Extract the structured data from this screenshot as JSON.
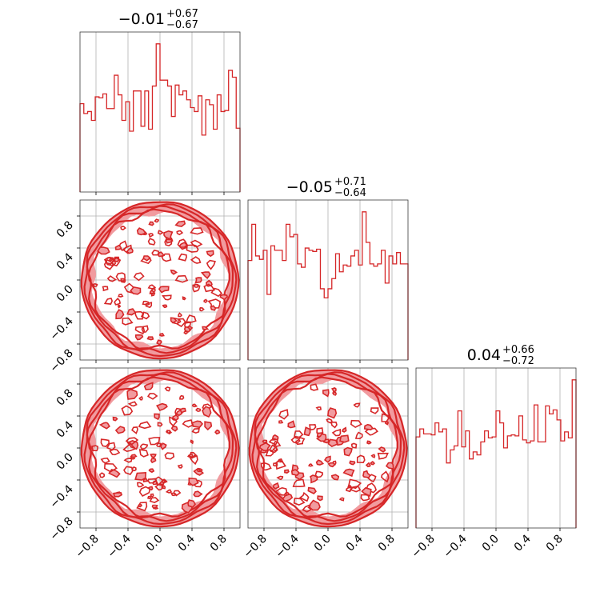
{
  "chart_data": {
    "type": "corner",
    "color": "#d62728",
    "fill_color": "#f19b9f",
    "range": [
      -1.0,
      1.0
    ],
    "tick_values": [
      -0.8,
      -0.4,
      0.0,
      0.4,
      0.8
    ],
    "tick_labels": [
      "−0.8",
      "−0.4",
      "0.0",
      "0.4",
      "0.8"
    ],
    "grid": true,
    "parameters": [
      {
        "title": {
          "main": "−0.01",
          "plus": "+0.67",
          "minus": "−0.67"
        },
        "histogram": [
          0.9,
          0.8,
          0.82,
          0.73,
          0.97,
          0.96,
          1.0,
          0.85,
          0.85,
          1.19,
          0.99,
          0.73,
          0.92,
          0.62,
          1.03,
          1.03,
          0.67,
          1.03,
          0.64,
          1.08,
          1.51,
          1.14,
          1.14,
          1.08,
          0.77,
          1.09,
          0.99,
          1.03,
          0.94,
          0.86,
          0.82,
          0.98,
          0.58,
          0.94,
          0.89,
          0.64,
          0.99,
          0.82,
          0.83,
          1.24,
          1.17,
          0.65
        ]
      },
      {
        "title": {
          "main": "−0.05",
          "plus": "+0.71",
          "minus": "−0.64"
        },
        "histogram": [
          0.88,
          1.2,
          0.92,
          0.89,
          0.97,
          0.58,
          1.01,
          0.97,
          0.97,
          0.88,
          1.2,
          1.09,
          1.11,
          0.85,
          0.82,
          0.99,
          0.97,
          0.96,
          0.98,
          0.63,
          0.55,
          0.63,
          0.72,
          0.94,
          0.78,
          0.84,
          0.83,
          0.92,
          0.97,
          0.84,
          1.31,
          1.04,
          0.85,
          0.83,
          0.85,
          0.97,
          0.68,
          0.92,
          0.85,
          0.95,
          0.85,
          0.85
        ]
      },
      {
        "title": {
          "main": "0.04",
          "plus": "+0.66",
          "minus": "−0.72"
        },
        "histogram": [
          0.91,
          0.99,
          0.94,
          0.94,
          0.93,
          1.05,
          0.96,
          0.99,
          0.65,
          0.78,
          0.82,
          1.17,
          0.81,
          0.97,
          0.69,
          0.76,
          0.73,
          0.86,
          0.97,
          0.9,
          0.91,
          1.17,
          1.05,
          0.8,
          0.92,
          0.93,
          0.92,
          1.12,
          0.88,
          0.85,
          0.87,
          1.23,
          0.86,
          0.86,
          1.22,
          1.14,
          1.18,
          1.08,
          0.87,
          0.96,
          0.9,
          1.48
        ]
      }
    ],
    "contours": [
      {
        "x_param": 0,
        "y_param": 1,
        "shape": "uniform disk",
        "radius": 1.0
      },
      {
        "x_param": 0,
        "y_param": 2,
        "shape": "uniform disk",
        "radius": 1.0
      },
      {
        "x_param": 1,
        "y_param": 2,
        "shape": "uniform disk",
        "radius": 1.0
      }
    ]
  }
}
